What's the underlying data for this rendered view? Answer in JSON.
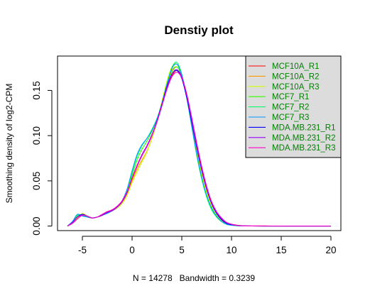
{
  "chart_data": {
    "type": "line",
    "title": "Denstiy plot",
    "xlabel": "N = 14278   Bandwidth = 0.3239",
    "ylabel": "Smoothing density of log2-CPM",
    "xlim": [
      -7.5,
      21
    ],
    "ylim": [
      -0.005,
      0.188
    ],
    "x_ticks": [
      -5,
      0,
      5,
      10,
      15,
      20
    ],
    "x_tick_labels": [
      "-5",
      "0",
      "5",
      "10",
      "15",
      "20"
    ],
    "y_ticks": [
      0,
      0.05,
      0.1,
      0.15
    ],
    "y_tick_labels": [
      "0.00",
      "0.05",
      "0.10",
      "0.15"
    ],
    "legend_position": "top-right",
    "legend_text_color": "#008000",
    "legend_background": "#dcdcdc",
    "x": [
      -6.5,
      -6.0,
      -5.5,
      -5.0,
      -4.5,
      -4.0,
      -3.5,
      -3.0,
      -2.5,
      -2.0,
      -1.5,
      -1.0,
      -0.5,
      0.0,
      0.5,
      1.0,
      1.5,
      2.0,
      2.5,
      3.0,
      3.5,
      4.0,
      4.5,
      5.0,
      5.5,
      6.0,
      6.5,
      7.0,
      7.5,
      8.0,
      8.5,
      9.0,
      9.5,
      10.0,
      10.5,
      11.0,
      12.0,
      14.0,
      16.0,
      18.0,
      20.0
    ],
    "series": [
      {
        "name": "MCF10A_R1",
        "color": "#ff0000",
        "values": [
          0.0,
          0.003,
          0.008,
          0.012,
          0.01,
          0.009,
          0.01,
          0.013,
          0.016,
          0.018,
          0.021,
          0.027,
          0.037,
          0.052,
          0.066,
          0.078,
          0.088,
          0.1,
          0.115,
          0.133,
          0.152,
          0.166,
          0.172,
          0.165,
          0.145,
          0.118,
          0.09,
          0.064,
          0.042,
          0.026,
          0.015,
          0.008,
          0.004,
          0.002,
          0.001,
          0.0005,
          0.0002,
          0.0001,
          0,
          0,
          0
        ]
      },
      {
        "name": "MCF10A_R2",
        "color": "#ff9900",
        "values": [
          0.0,
          0.003,
          0.008,
          0.013,
          0.01,
          0.009,
          0.01,
          0.012,
          0.015,
          0.017,
          0.02,
          0.026,
          0.035,
          0.05,
          0.063,
          0.073,
          0.083,
          0.097,
          0.115,
          0.136,
          0.157,
          0.172,
          0.176,
          0.166,
          0.145,
          0.116,
          0.087,
          0.061,
          0.04,
          0.024,
          0.014,
          0.007,
          0.003,
          0.0015,
          0.0007,
          0.0003,
          0.0001,
          0,
          0,
          0,
          0
        ]
      },
      {
        "name": "MCF10A_R3",
        "color": "#ccff00",
        "values": [
          0.0,
          0.003,
          0.009,
          0.014,
          0.011,
          0.009,
          0.01,
          0.012,
          0.015,
          0.017,
          0.02,
          0.025,
          0.034,
          0.048,
          0.06,
          0.071,
          0.082,
          0.097,
          0.116,
          0.138,
          0.16,
          0.176,
          0.179,
          0.166,
          0.143,
          0.113,
          0.084,
          0.058,
          0.037,
          0.022,
          0.012,
          0.006,
          0.003,
          0.0012,
          0.0005,
          0.0002,
          0.0001,
          0,
          0,
          0,
          0
        ]
      },
      {
        "name": "MCF7_R1",
        "color": "#33ff00",
        "values": [
          0.0,
          0.004,
          0.011,
          0.012,
          0.011,
          0.009,
          0.01,
          0.012,
          0.015,
          0.017,
          0.021,
          0.027,
          0.038,
          0.056,
          0.073,
          0.085,
          0.094,
          0.105,
          0.118,
          0.134,
          0.154,
          0.17,
          0.176,
          0.165,
          0.141,
          0.11,
          0.079,
          0.053,
          0.033,
          0.019,
          0.01,
          0.005,
          0.002,
          0.001,
          0.0004,
          0.0002,
          0.0001,
          0,
          0,
          0,
          0
        ]
      },
      {
        "name": "MCF7_R2",
        "color": "#00ff66",
        "values": [
          0.0,
          0.005,
          0.012,
          0.012,
          0.01,
          0.009,
          0.01,
          0.012,
          0.014,
          0.017,
          0.021,
          0.028,
          0.04,
          0.059,
          0.077,
          0.089,
          0.097,
          0.107,
          0.119,
          0.136,
          0.157,
          0.175,
          0.181,
          0.168,
          0.142,
          0.11,
          0.078,
          0.052,
          0.032,
          0.018,
          0.01,
          0.005,
          0.002,
          0.001,
          0.0004,
          0.0002,
          0.0001,
          0,
          0,
          0,
          0
        ]
      },
      {
        "name": "MCF7_R3",
        "color": "#0099ff",
        "values": [
          0.0,
          0.005,
          0.013,
          0.011,
          0.01,
          0.009,
          0.01,
          0.012,
          0.014,
          0.017,
          0.021,
          0.028,
          0.041,
          0.061,
          0.079,
          0.09,
          0.097,
          0.106,
          0.118,
          0.135,
          0.156,
          0.174,
          0.179,
          0.167,
          0.142,
          0.111,
          0.08,
          0.054,
          0.034,
          0.02,
          0.011,
          0.005,
          0.002,
          0.001,
          0.0005,
          0.0002,
          0.0001,
          0,
          0,
          0,
          0
        ]
      },
      {
        "name": "MDA.MB.231_R1",
        "color": "#0000ff",
        "values": [
          0.0,
          0.004,
          0.01,
          0.013,
          0.011,
          0.009,
          0.01,
          0.012,
          0.015,
          0.017,
          0.021,
          0.027,
          0.037,
          0.053,
          0.067,
          0.079,
          0.089,
          0.101,
          0.116,
          0.135,
          0.154,
          0.168,
          0.172,
          0.163,
          0.142,
          0.115,
          0.087,
          0.062,
          0.041,
          0.025,
          0.014,
          0.007,
          0.003,
          0.0015,
          0.0007,
          0.0003,
          0.0001,
          0,
          0,
          0,
          0
        ]
      },
      {
        "name": "MDA.MB.231_R2",
        "color": "#9900ff",
        "values": [
          0.0,
          0.004,
          0.01,
          0.012,
          0.011,
          0.009,
          0.01,
          0.012,
          0.015,
          0.017,
          0.021,
          0.027,
          0.037,
          0.053,
          0.067,
          0.079,
          0.089,
          0.101,
          0.116,
          0.134,
          0.153,
          0.168,
          0.173,
          0.165,
          0.144,
          0.117,
          0.089,
          0.063,
          0.042,
          0.026,
          0.015,
          0.008,
          0.004,
          0.002,
          0.0008,
          0.0003,
          0.0001,
          0,
          0,
          0,
          0
        ]
      },
      {
        "name": "MDA.MB.231_R3",
        "color": "#ff00cc",
        "values": [
          0.0,
          0.003,
          0.008,
          0.012,
          0.011,
          0.009,
          0.01,
          0.013,
          0.016,
          0.018,
          0.022,
          0.028,
          0.038,
          0.053,
          0.067,
          0.078,
          0.088,
          0.1,
          0.115,
          0.133,
          0.151,
          0.165,
          0.17,
          0.164,
          0.146,
          0.12,
          0.092,
          0.066,
          0.044,
          0.027,
          0.016,
          0.009,
          0.004,
          0.002,
          0.001,
          0.0004,
          0.0002,
          0.0001,
          0,
          0,
          0
        ]
      }
    ]
  }
}
